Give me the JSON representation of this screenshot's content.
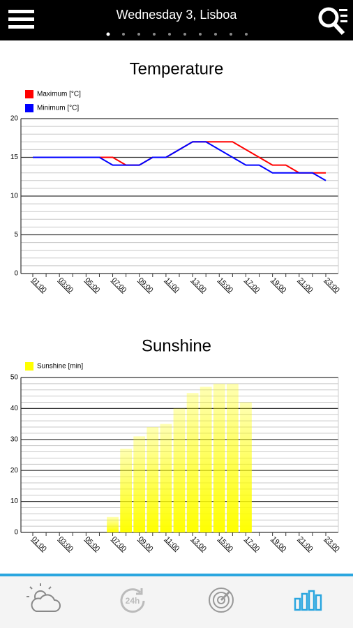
{
  "header": {
    "title": "Wednesday 3, Lisboa"
  },
  "nav": {
    "history_label": "24h"
  },
  "chart_data": [
    {
      "type": "line",
      "title": "Temperature",
      "categories": [
        "01:00",
        null,
        "03:00",
        null,
        "05:00",
        null,
        "07:00",
        null,
        "09:00",
        null,
        "11:00",
        null,
        "13:00",
        null,
        "15:00",
        null,
        "17:00",
        null,
        "19:00",
        null,
        "21:00",
        null,
        "23:00"
      ],
      "series": [
        {
          "name": "Maximum [°C]",
          "color": "#ff0000",
          "values": [
            15,
            15,
            15,
            15,
            15,
            15,
            15,
            14,
            14,
            15,
            15,
            16,
            17,
            17,
            17,
            17,
            16,
            15,
            14,
            14,
            13,
            13,
            13
          ]
        },
        {
          "name": "Minimum [°C]",
          "color": "#0000ff",
          "values": [
            15,
            15,
            15,
            15,
            15,
            15,
            14,
            14,
            14,
            15,
            15,
            16,
            17,
            17,
            16,
            15,
            14,
            14,
            13,
            13,
            13,
            13,
            12
          ]
        }
      ],
      "ylim": [
        0,
        20
      ],
      "yticks": [
        0,
        5,
        10,
        15,
        20
      ],
      "grid": true
    },
    {
      "type": "bar",
      "title": "Sunshine",
      "categories": [
        "01:00",
        null,
        "03:00",
        null,
        "05:00",
        null,
        "07:00",
        null,
        "09:00",
        null,
        "11:00",
        null,
        "13:00",
        null,
        "15:00",
        null,
        "17:00",
        null,
        "19:00",
        null,
        "21:00",
        null,
        "23:00"
      ],
      "series": [
        {
          "name": "Sunshine [min]",
          "color": "#ffff00",
          "values": [
            0,
            0,
            0,
            0,
            0,
            0,
            5,
            27,
            31,
            34,
            35,
            40,
            45,
            47,
            48,
            48,
            42,
            0,
            0,
            0,
            0,
            0,
            0
          ]
        }
      ],
      "ylim": [
        0,
        50
      ],
      "yticks": [
        0,
        10,
        20,
        30,
        40,
        50
      ],
      "grid": true
    }
  ]
}
